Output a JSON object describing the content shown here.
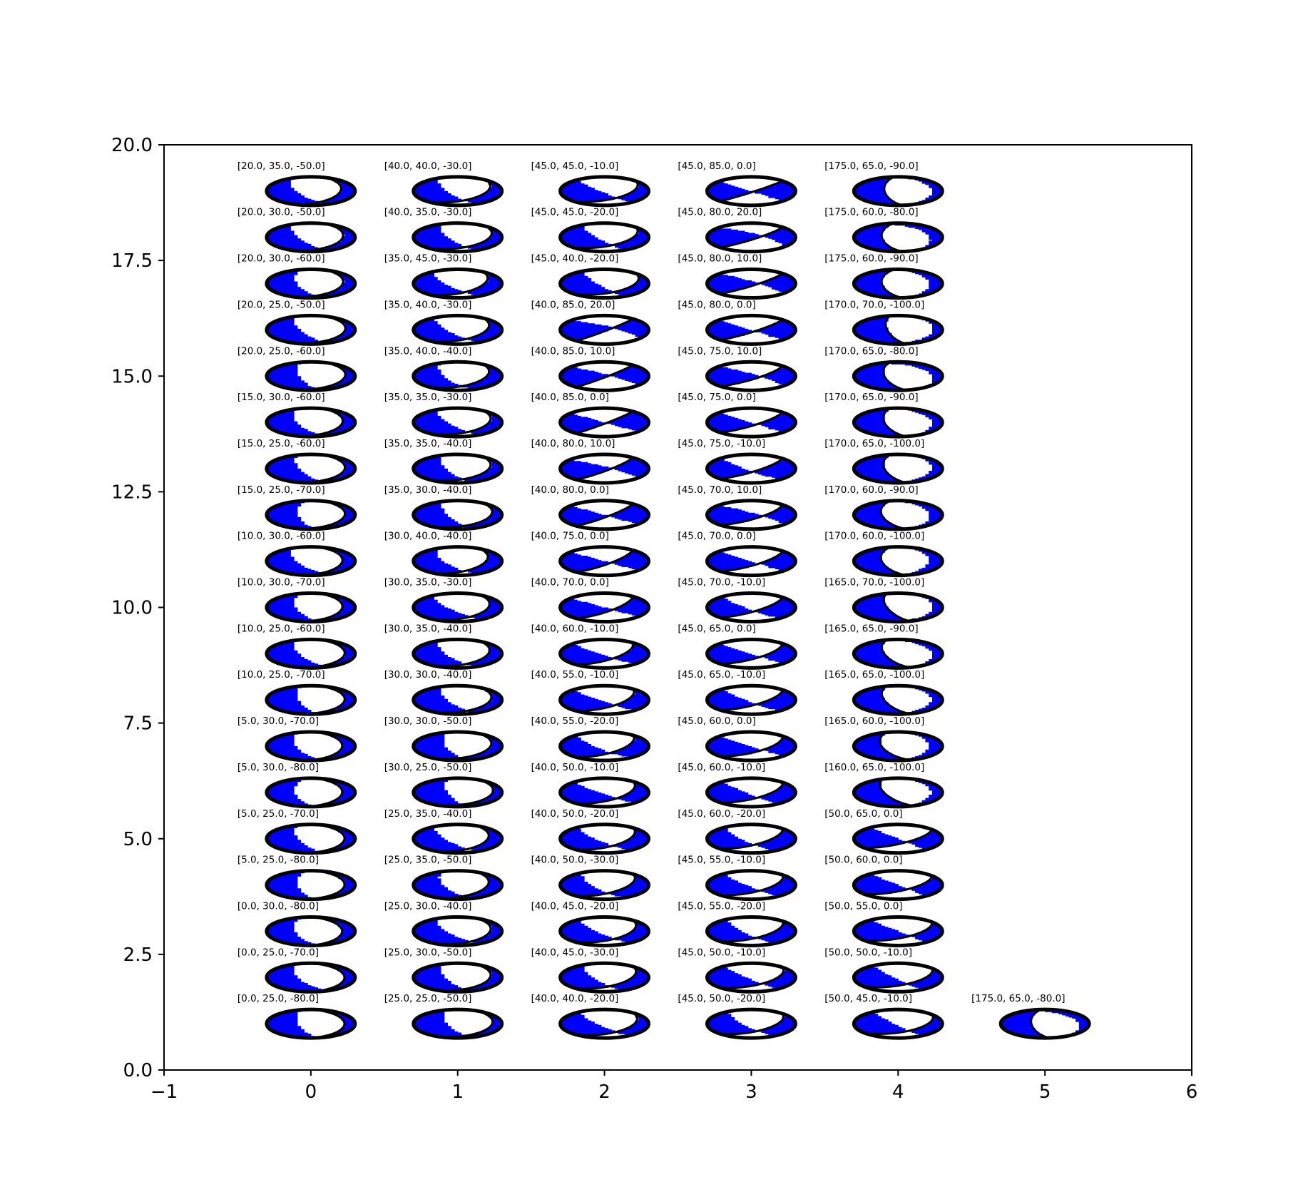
{
  "chart_data": {
    "type": "scatter",
    "marker": "focal-mechanism-beachball",
    "xlim": [
      -1,
      6
    ],
    "ylim": [
      0.0,
      20.0
    ],
    "xticks": [
      -1,
      0,
      1,
      2,
      3,
      4,
      5,
      6
    ],
    "xtick_labels": [
      "−1",
      "0",
      "1",
      "2",
      "3",
      "4",
      "5",
      "6"
    ],
    "yticks": [
      0.0,
      2.5,
      5.0,
      7.5,
      10.0,
      12.5,
      15.0,
      17.5,
      20.0
    ],
    "ytick_labels": [
      "0.0",
      "2.5",
      "5.0",
      "7.5",
      "10.0",
      "12.5",
      "15.0",
      "17.5",
      "20.0"
    ],
    "xlabel": "",
    "ylabel": "",
    "title": "",
    "grid": false,
    "fill_color": "#0000ff",
    "edge_color": "#000000",
    "points": [
      {
        "x": 0,
        "y": 1,
        "label": "[0.0, 25.0, -80.0]"
      },
      {
        "x": 0,
        "y": 2,
        "label": "[0.0, 25.0, -70.0]"
      },
      {
        "x": 0,
        "y": 3,
        "label": "[0.0, 30.0, -80.0]"
      },
      {
        "x": 0,
        "y": 4,
        "label": "[5.0, 25.0, -80.0]"
      },
      {
        "x": 0,
        "y": 5,
        "label": "[5.0, 25.0, -70.0]"
      },
      {
        "x": 0,
        "y": 6,
        "label": "[5.0, 30.0, -80.0]"
      },
      {
        "x": 0,
        "y": 7,
        "label": "[5.0, 30.0, -70.0]"
      },
      {
        "x": 0,
        "y": 8,
        "label": "[10.0, 25.0, -70.0]"
      },
      {
        "x": 0,
        "y": 9,
        "label": "[10.0, 25.0, -60.0]"
      },
      {
        "x": 0,
        "y": 10,
        "label": "[10.0, 30.0, -70.0]"
      },
      {
        "x": 0,
        "y": 11,
        "label": "[10.0, 30.0, -60.0]"
      },
      {
        "x": 0,
        "y": 12,
        "label": "[15.0, 25.0, -70.0]"
      },
      {
        "x": 0,
        "y": 13,
        "label": "[15.0, 25.0, -60.0]"
      },
      {
        "x": 0,
        "y": 14,
        "label": "[15.0, 30.0, -60.0]"
      },
      {
        "x": 0,
        "y": 15,
        "label": "[20.0, 25.0, -60.0]"
      },
      {
        "x": 0,
        "y": 16,
        "label": "[20.0, 25.0, -50.0]"
      },
      {
        "x": 0,
        "y": 17,
        "label": "[20.0, 30.0, -60.0]"
      },
      {
        "x": 0,
        "y": 18,
        "label": "[20.0, 30.0, -50.0]"
      },
      {
        "x": 0,
        "y": 19,
        "label": "[20.0, 35.0, -50.0]"
      },
      {
        "x": 1,
        "y": 1,
        "label": "[25.0, 25.0, -50.0]"
      },
      {
        "x": 1,
        "y": 2,
        "label": "[25.0, 30.0, -50.0]"
      },
      {
        "x": 1,
        "y": 3,
        "label": "[25.0, 30.0, -40.0]"
      },
      {
        "x": 1,
        "y": 4,
        "label": "[25.0, 35.0, -50.0]"
      },
      {
        "x": 1,
        "y": 5,
        "label": "[25.0, 35.0, -40.0]"
      },
      {
        "x": 1,
        "y": 6,
        "label": "[30.0, 25.0, -50.0]"
      },
      {
        "x": 1,
        "y": 7,
        "label": "[30.0, 30.0, -50.0]"
      },
      {
        "x": 1,
        "y": 8,
        "label": "[30.0, 30.0, -40.0]"
      },
      {
        "x": 1,
        "y": 9,
        "label": "[30.0, 35.0, -40.0]"
      },
      {
        "x": 1,
        "y": 10,
        "label": "[30.0, 35.0, -30.0]"
      },
      {
        "x": 1,
        "y": 11,
        "label": "[30.0, 40.0, -40.0]"
      },
      {
        "x": 1,
        "y": 12,
        "label": "[35.0, 30.0, -40.0]"
      },
      {
        "x": 1,
        "y": 13,
        "label": "[35.0, 35.0, -40.0]"
      },
      {
        "x": 1,
        "y": 14,
        "label": "[35.0, 35.0, -30.0]"
      },
      {
        "x": 1,
        "y": 15,
        "label": "[35.0, 40.0, -40.0]"
      },
      {
        "x": 1,
        "y": 16,
        "label": "[35.0, 40.0, -30.0]"
      },
      {
        "x": 1,
        "y": 17,
        "label": "[35.0, 45.0, -30.0]"
      },
      {
        "x": 1,
        "y": 18,
        "label": "[40.0, 35.0, -30.0]"
      },
      {
        "x": 1,
        "y": 19,
        "label": "[40.0, 40.0, -30.0]"
      },
      {
        "x": 2,
        "y": 1,
        "label": "[40.0, 40.0, -20.0]"
      },
      {
        "x": 2,
        "y": 2,
        "label": "[40.0, 45.0, -30.0]"
      },
      {
        "x": 2,
        "y": 3,
        "label": "[40.0, 45.0, -20.0]"
      },
      {
        "x": 2,
        "y": 4,
        "label": "[40.0, 50.0, -30.0]"
      },
      {
        "x": 2,
        "y": 5,
        "label": "[40.0, 50.0, -20.0]"
      },
      {
        "x": 2,
        "y": 6,
        "label": "[40.0, 50.0, -10.0]"
      },
      {
        "x": 2,
        "y": 7,
        "label": "[40.0, 55.0, -20.0]"
      },
      {
        "x": 2,
        "y": 8,
        "label": "[40.0, 55.0, -10.0]"
      },
      {
        "x": 2,
        "y": 9,
        "label": "[40.0, 60.0, -10.0]"
      },
      {
        "x": 2,
        "y": 10,
        "label": "[40.0, 70.0, 0.0]"
      },
      {
        "x": 2,
        "y": 11,
        "label": "[40.0, 75.0, 0.0]"
      },
      {
        "x": 2,
        "y": 12,
        "label": "[40.0, 80.0, 0.0]"
      },
      {
        "x": 2,
        "y": 13,
        "label": "[40.0, 80.0, 10.0]"
      },
      {
        "x": 2,
        "y": 14,
        "label": "[40.0, 85.0, 0.0]"
      },
      {
        "x": 2,
        "y": 15,
        "label": "[40.0, 85.0, 10.0]"
      },
      {
        "x": 2,
        "y": 16,
        "label": "[40.0, 85.0, 20.0]"
      },
      {
        "x": 2,
        "y": 17,
        "label": "[45.0, 40.0, -20.0]"
      },
      {
        "x": 2,
        "y": 18,
        "label": "[45.0, 45.0, -20.0]"
      },
      {
        "x": 2,
        "y": 19,
        "label": "[45.0, 45.0, -10.0]"
      },
      {
        "x": 3,
        "y": 1,
        "label": "[45.0, 50.0, -20.0]"
      },
      {
        "x": 3,
        "y": 2,
        "label": "[45.0, 50.0, -10.0]"
      },
      {
        "x": 3,
        "y": 3,
        "label": "[45.0, 55.0, -20.0]"
      },
      {
        "x": 3,
        "y": 4,
        "label": "[45.0, 55.0, -10.0]"
      },
      {
        "x": 3,
        "y": 5,
        "label": "[45.0, 60.0, -20.0]"
      },
      {
        "x": 3,
        "y": 6,
        "label": "[45.0, 60.0, -10.0]"
      },
      {
        "x": 3,
        "y": 7,
        "label": "[45.0, 60.0, 0.0]"
      },
      {
        "x": 3,
        "y": 8,
        "label": "[45.0, 65.0, -10.0]"
      },
      {
        "x": 3,
        "y": 9,
        "label": "[45.0, 65.0, 0.0]"
      },
      {
        "x": 3,
        "y": 10,
        "label": "[45.0, 70.0, -10.0]"
      },
      {
        "x": 3,
        "y": 11,
        "label": "[45.0, 70.0, 0.0]"
      },
      {
        "x": 3,
        "y": 12,
        "label": "[45.0, 70.0, 10.0]"
      },
      {
        "x": 3,
        "y": 13,
        "label": "[45.0, 75.0, -10.0]"
      },
      {
        "x": 3,
        "y": 14,
        "label": "[45.0, 75.0, 0.0]"
      },
      {
        "x": 3,
        "y": 15,
        "label": "[45.0, 75.0, 10.0]"
      },
      {
        "x": 3,
        "y": 16,
        "label": "[45.0, 80.0, 0.0]"
      },
      {
        "x": 3,
        "y": 17,
        "label": "[45.0, 80.0, 10.0]"
      },
      {
        "x": 3,
        "y": 18,
        "label": "[45.0, 80.0, 20.0]"
      },
      {
        "x": 3,
        "y": 19,
        "label": "[45.0, 85.0, 0.0]"
      },
      {
        "x": 4,
        "y": 1,
        "label": "[50.0, 45.0, -10.0]"
      },
      {
        "x": 4,
        "y": 2,
        "label": "[50.0, 50.0, -10.0]"
      },
      {
        "x": 4,
        "y": 3,
        "label": "[50.0, 55.0, 0.0]"
      },
      {
        "x": 4,
        "y": 4,
        "label": "[50.0, 60.0, 0.0]"
      },
      {
        "x": 4,
        "y": 5,
        "label": "[50.0, 65.0, 0.0]"
      },
      {
        "x": 4,
        "y": 6,
        "label": "[160.0, 65.0, -100.0]"
      },
      {
        "x": 4,
        "y": 7,
        "label": "[165.0, 60.0, -100.0]"
      },
      {
        "x": 4,
        "y": 8,
        "label": "[165.0, 65.0, -100.0]"
      },
      {
        "x": 4,
        "y": 9,
        "label": "[165.0, 65.0, -90.0]"
      },
      {
        "x": 4,
        "y": 10,
        "label": "[165.0, 70.0, -100.0]"
      },
      {
        "x": 4,
        "y": 11,
        "label": "[170.0, 60.0, -100.0]"
      },
      {
        "x": 4,
        "y": 12,
        "label": "[170.0, 60.0, -90.0]"
      },
      {
        "x": 4,
        "y": 13,
        "label": "[170.0, 65.0, -100.0]"
      },
      {
        "x": 4,
        "y": 14,
        "label": "[170.0, 65.0, -90.0]"
      },
      {
        "x": 4,
        "y": 15,
        "label": "[170.0, 65.0, -80.0]"
      },
      {
        "x": 4,
        "y": 16,
        "label": "[170.0, 70.0, -100.0]"
      },
      {
        "x": 4,
        "y": 17,
        "label": "[175.0, 60.0, -90.0]"
      },
      {
        "x": 4,
        "y": 18,
        "label": "[175.0, 60.0, -80.0]"
      },
      {
        "x": 4,
        "y": 19,
        "label": "[175.0, 65.0, -90.0]"
      },
      {
        "x": 5,
        "y": 1,
        "label": "[175.0, 65.0, -80.0]"
      }
    ]
  }
}
